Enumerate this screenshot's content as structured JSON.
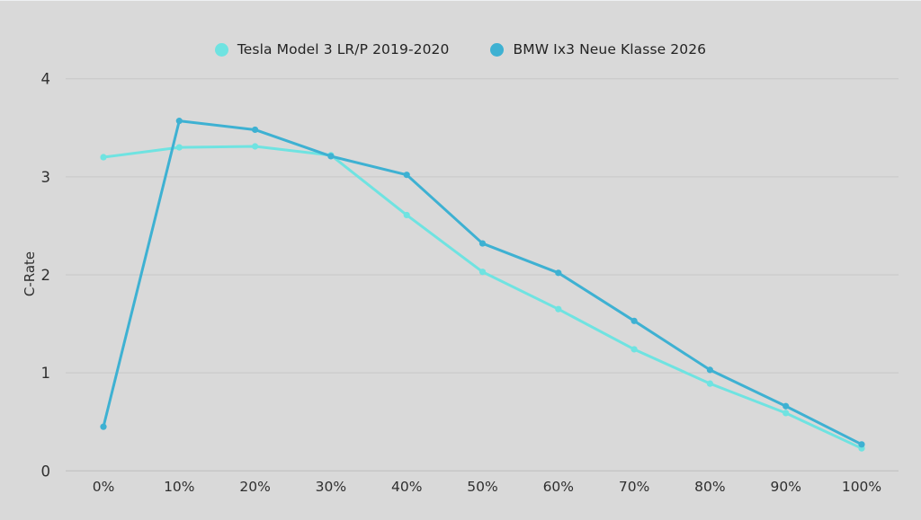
{
  "page": {
    "background": "#d9d9d9"
  },
  "chart_data": {
    "type": "line",
    "categories": [
      "0%",
      "10%",
      "20%",
      "30%",
      "40%",
      "50%",
      "60%",
      "70%",
      "80%",
      "90%",
      "100%"
    ],
    "series": [
      {
        "name": "Tesla Model 3 LR/P 2019-2020",
        "color": "#6fe3e1",
        "values": [
          3.2,
          3.3,
          3.31,
          3.22,
          2.61,
          2.03,
          1.65,
          1.24,
          0.89,
          0.59,
          0.23
        ]
      },
      {
        "name": "BMW Ix3 Neue Klasse 2026",
        "color": "#3eb1d2",
        "values": [
          0.45,
          3.57,
          3.48,
          3.21,
          3.02,
          2.32,
          2.02,
          1.53,
          1.03,
          0.66,
          0.27
        ]
      }
    ],
    "title": "",
    "xlabel": "",
    "ylabel": "C-Rate",
    "ylim": [
      0,
      4
    ],
    "yticks": [
      0,
      1,
      2,
      3,
      4
    ],
    "grid": true,
    "legend_position": "top-center",
    "marker": "circle",
    "colors": {
      "grid": "#c7c7c7",
      "axis": "#bdbdbd",
      "tick_text": "#2f2f2f",
      "axis_label_text": "#2f2f2f"
    }
  }
}
